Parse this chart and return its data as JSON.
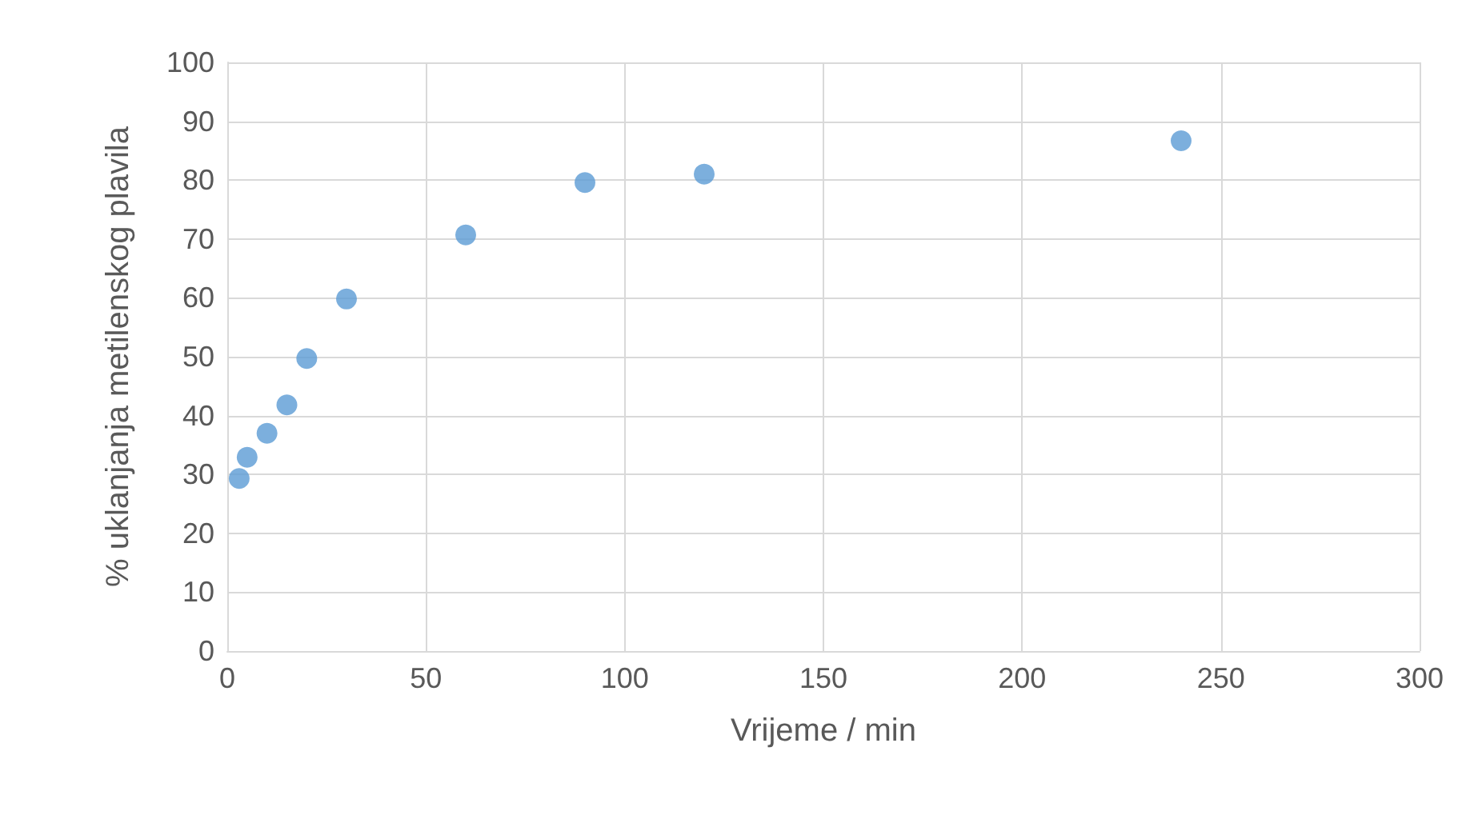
{
  "chart_data": {
    "type": "scatter",
    "xlabel": "Vrijeme / min",
    "ylabel": "% uklanjanja metilenskog plavila",
    "x": [
      3,
      5,
      10,
      15,
      20,
      30,
      60,
      90,
      120,
      240
    ],
    "series": [
      {
        "color": "#5b9bd5",
        "values": [
          29.3,
          32.9,
          37.0,
          41.8,
          49.7,
          59.8,
          70.7,
          79.6,
          81.0,
          86.7
        ]
      }
    ],
    "xlim": [
      0,
      300
    ],
    "xticks": [
      0,
      50,
      100,
      150,
      200,
      250,
      300
    ],
    "ylim": [
      0,
      100
    ],
    "yticks": [
      0,
      10,
      20,
      30,
      40,
      50,
      60,
      70,
      80,
      90,
      100
    ],
    "grid": true,
    "marker": "circle"
  }
}
